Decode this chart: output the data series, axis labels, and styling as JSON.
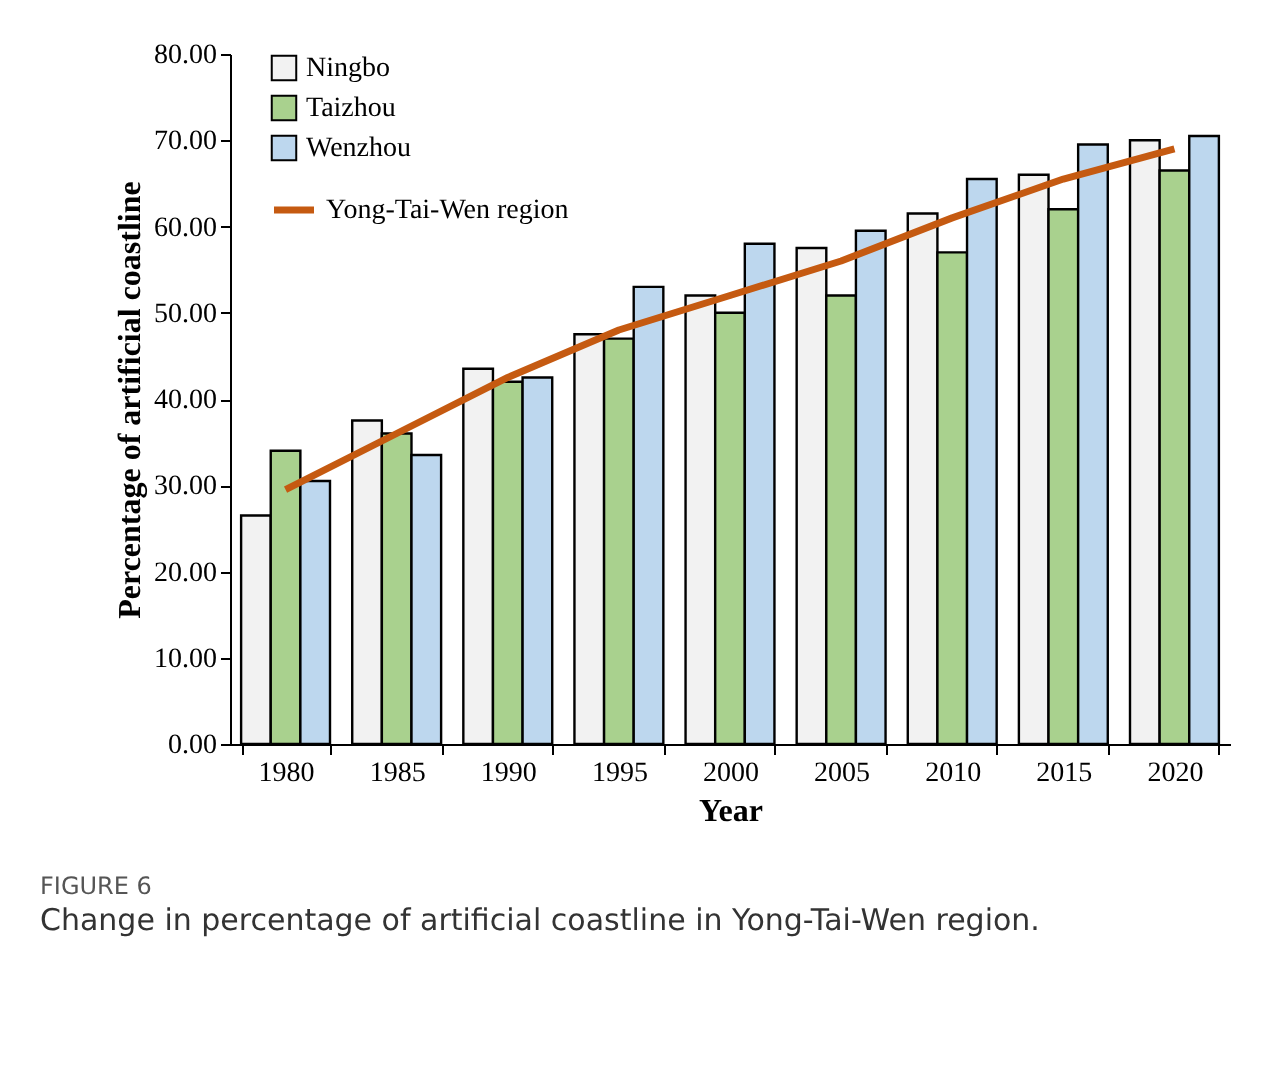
{
  "chart_data": {
    "type": "bar",
    "xlabel": "Year",
    "ylabel": "Percentage of artificial coastline",
    "categories": [
      "1980",
      "1985",
      "1990",
      "1995",
      "2000",
      "2005",
      "2010",
      "2015",
      "2020"
    ],
    "series": [
      {
        "name": "Ningbo",
        "color": "#f2f2f2",
        "values": [
          26.5,
          37.5,
          43.5,
          47.5,
          52,
          57.5,
          61.5,
          66,
          70
        ]
      },
      {
        "name": "Taizhou",
        "color": "#a9d18e",
        "values": [
          34,
          36,
          42,
          47,
          50,
          52,
          57,
          62,
          66.5
        ]
      },
      {
        "name": "Wenzhou",
        "color": "#bdd7ee",
        "values": [
          30.5,
          33.5,
          42.5,
          53,
          58,
          59.5,
          65.5,
          69.5,
          70.5
        ]
      },
      {
        "name": "Yong-Tai-Wen region",
        "type": "line",
        "color": "#c55a11",
        "values": [
          29.5,
          36,
          42.5,
          48,
          52,
          56,
          61,
          65.5,
          69
        ]
      }
    ],
    "ylim": [
      0,
      80
    ],
    "yticks": [
      {
        "value": 0,
        "label": "0.00"
      },
      {
        "value": 10,
        "label": "10.00"
      },
      {
        "value": 20,
        "label": "20.00"
      },
      {
        "value": 30,
        "label": "30.00"
      },
      {
        "value": 40,
        "label": "40.00"
      },
      {
        "value": 50,
        "label": "50.00"
      },
      {
        "value": 60,
        "label": "60.00"
      },
      {
        "value": 70,
        "label": "70.00"
      },
      {
        "value": 80,
        "label": "80.00"
      }
    ],
    "grid": false,
    "legend": "top left",
    "annotations": [
      "FIGURE 6",
      "Change in percentage of artificial coastline in Yong-Tai-Wen region."
    ]
  }
}
